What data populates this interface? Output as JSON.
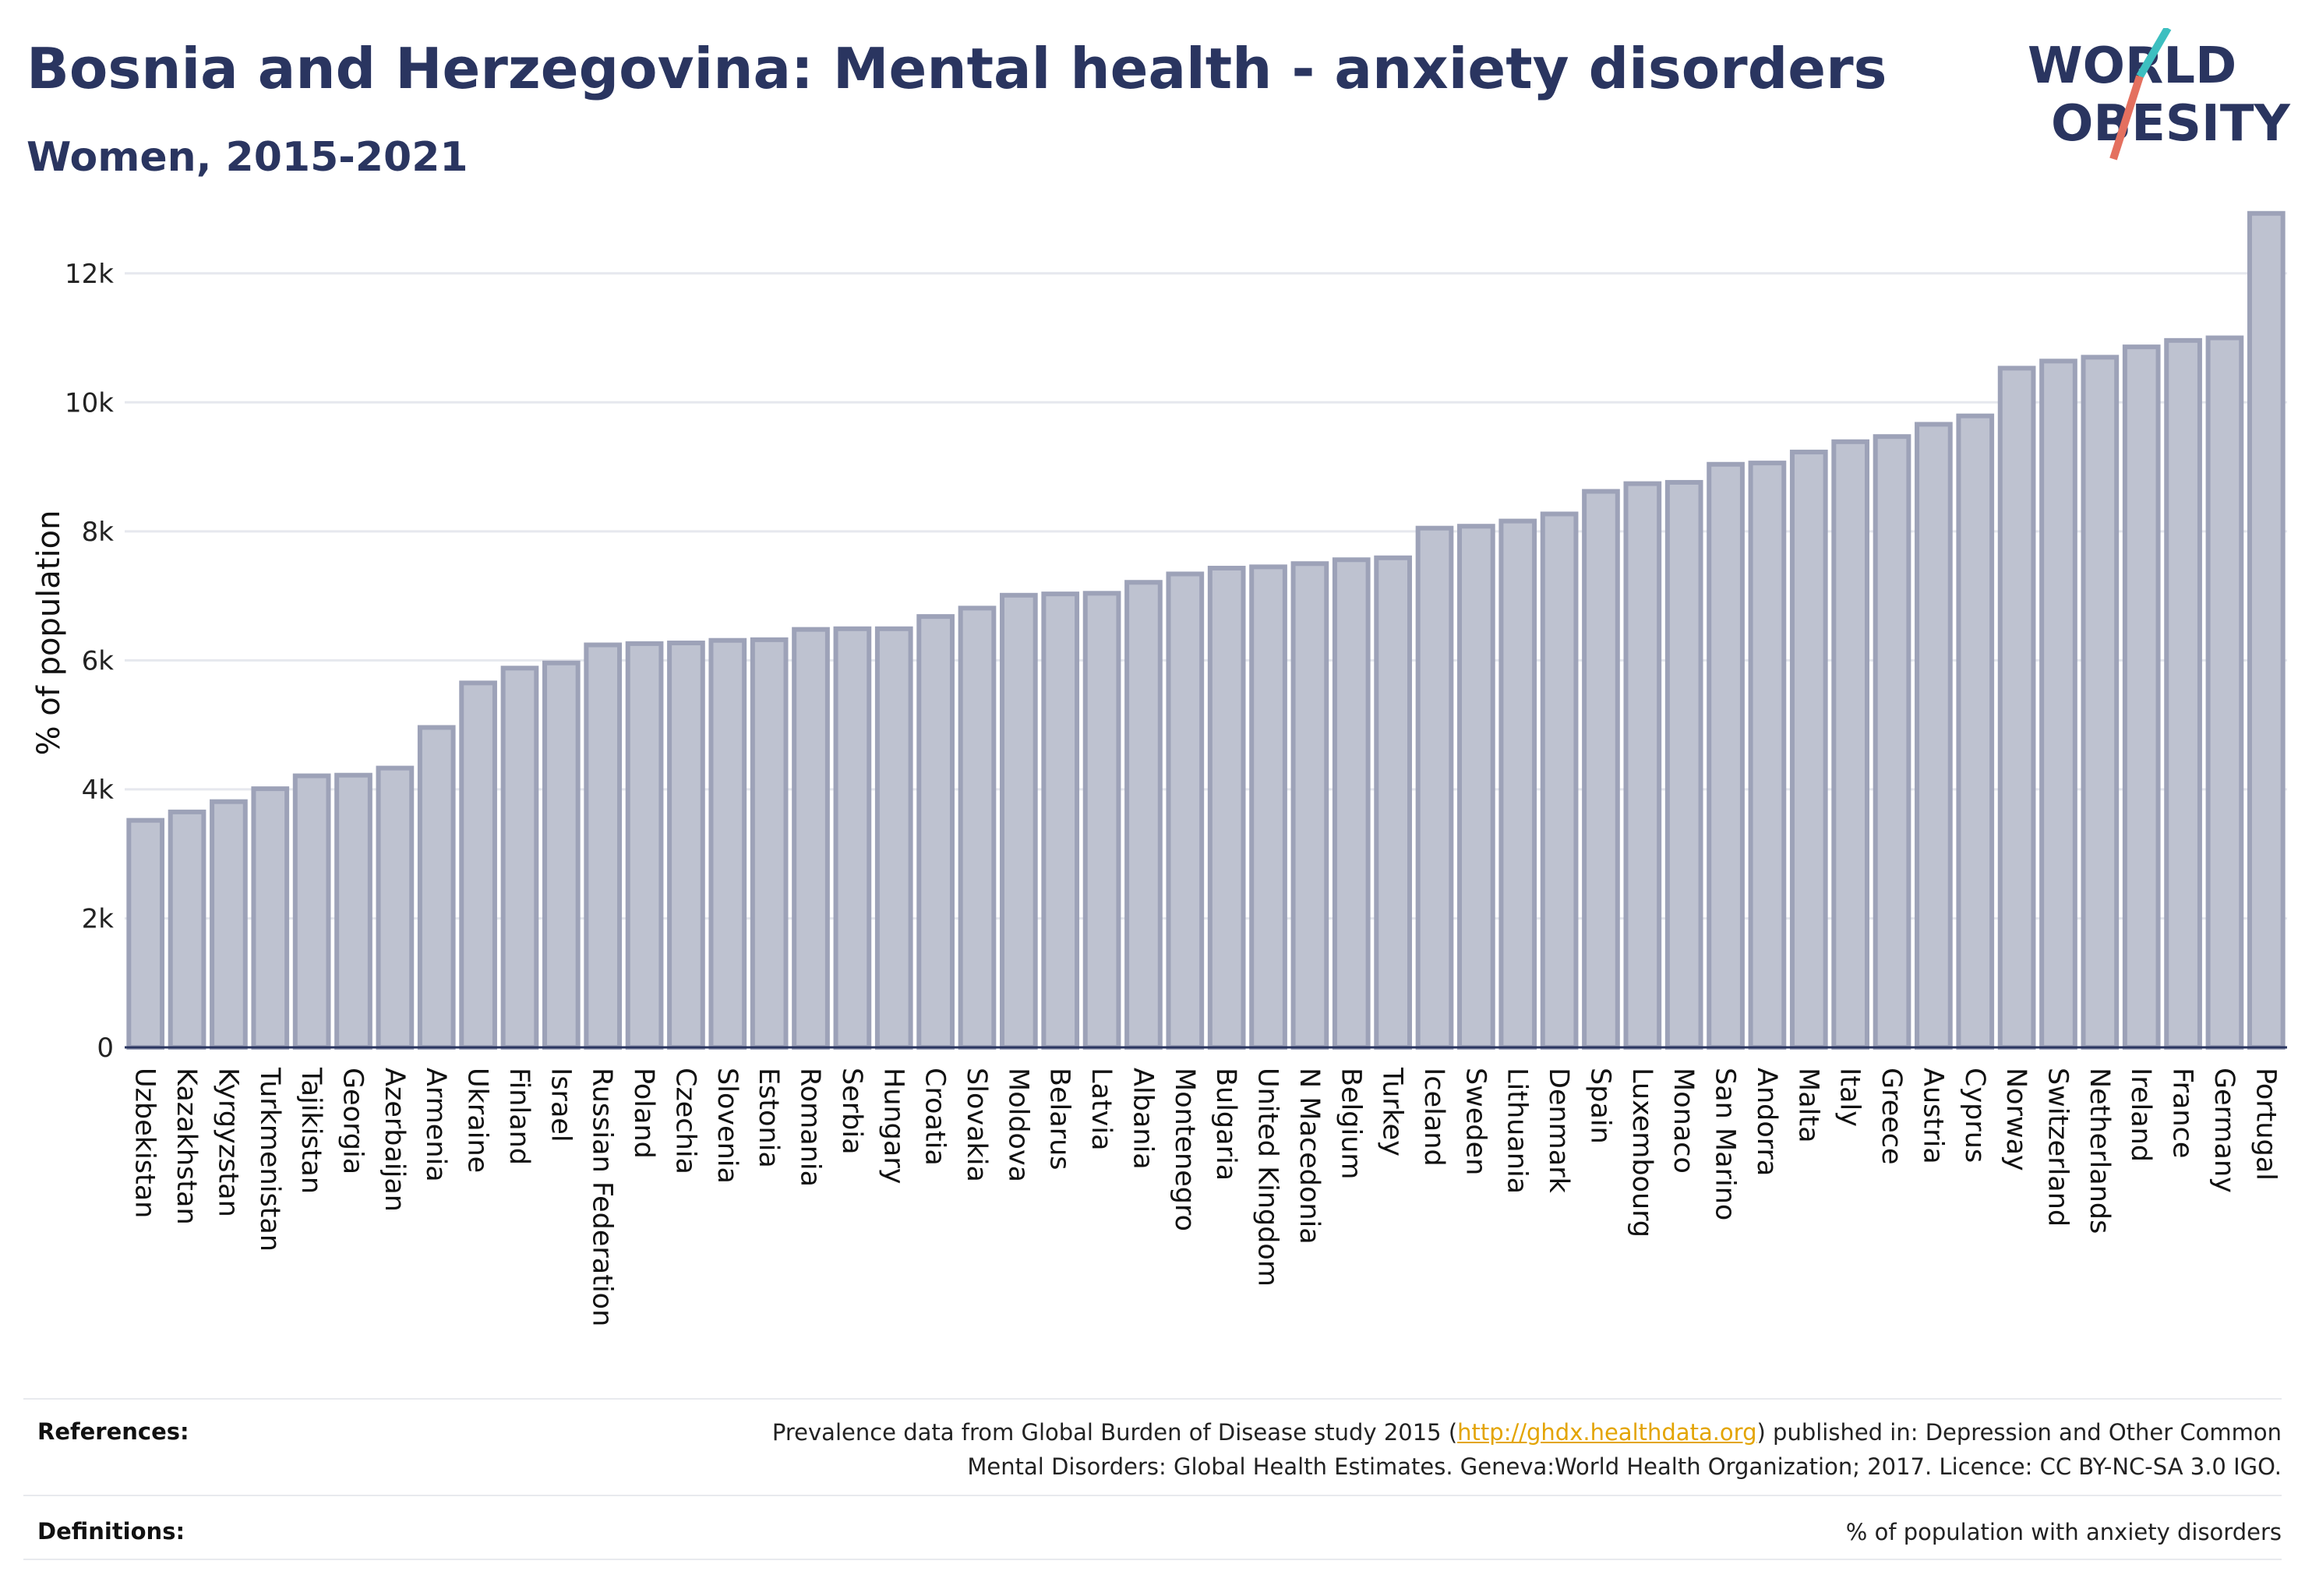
{
  "header": {
    "title": "Bosnia and Herzegovina: Mental health - anxiety disorders",
    "subtitle": "Women, 2015-2021"
  },
  "logo": {
    "line1": "WORLD",
    "line2": "OBESITY",
    "colors": {
      "text": "#2a3560",
      "slash_top": "#3dbfc0",
      "slash_bottom": "#e4705f"
    }
  },
  "chart_data": {
    "type": "bar",
    "ylabel": "% of population",
    "ylim": [
      0,
      13000
    ],
    "yticks": [
      0,
      2000,
      4000,
      6000,
      8000,
      10000,
      12000
    ],
    "ytick_labels": [
      "0",
      "2k",
      "4k",
      "6k",
      "8k",
      "10k",
      "12k"
    ],
    "grid": true,
    "bar_fill": "#bec2d0",
    "bar_stroke": "#9da2b8",
    "categories": [
      "Uzbekistan",
      "Kazakhstan",
      "Kyrgyzstan",
      "Turkmenistan",
      "Tajikistan",
      "Georgia",
      "Azerbaijan",
      "Armenia",
      "Ukraine",
      "Finland",
      "Israel",
      "Russian Federation",
      "Poland",
      "Czechia",
      "Slovenia",
      "Estonia",
      "Romania",
      "Serbia",
      "Hungary",
      "Croatia",
      "Slovakia",
      "Moldova",
      "Belarus",
      "Latvia",
      "Albania",
      "Montenegro",
      "Bulgaria",
      "United Kingdom",
      "N Macedonia",
      "Belgium",
      "Turkey",
      "Iceland",
      "Sweden",
      "Lithuania",
      "Denmark",
      "Spain",
      "Luxembourg",
      "Monaco",
      "San Marino",
      "Andorra",
      "Malta",
      "Italy",
      "Greece",
      "Austria",
      "Cyprus",
      "Norway",
      "Switzerland",
      "Netherlands",
      "Ireland",
      "France",
      "Germany",
      "Portugal"
    ],
    "values": [
      3520,
      3650,
      3810,
      4010,
      4210,
      4220,
      4330,
      4960,
      5650,
      5880,
      5960,
      6240,
      6260,
      6270,
      6310,
      6320,
      6480,
      6490,
      6490,
      6680,
      6810,
      7010,
      7030,
      7040,
      7210,
      7340,
      7430,
      7450,
      7500,
      7560,
      7590,
      8050,
      8080,
      8160,
      8270,
      8620,
      8740,
      8760,
      9040,
      9060,
      9230,
      9390,
      9470,
      9660,
      9790,
      10530,
      10640,
      10700,
      10860,
      10960,
      11000,
      12930
    ]
  },
  "footer": {
    "references_label": "References:",
    "references_text_1": "Prevalence data from Global Burden of Disease study 2015 (",
    "references_link": "http://ghdx.healthdata.org",
    "references_text_2": ") published in: Depression and Other Common",
    "references_text_3": "Mental Disorders: Global Health Estimates. Geneva:World Health Organization; 2017. Licence: CC BY-NC-SA 3.0 IGO.",
    "definitions_label": "Definitions:",
    "definitions_text": "% of population with anxiety disorders"
  }
}
